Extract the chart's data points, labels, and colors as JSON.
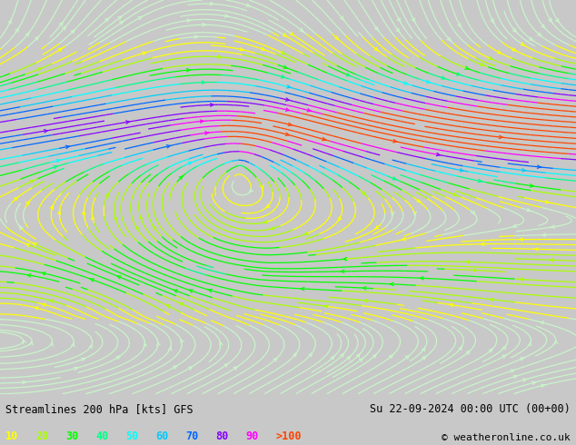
{
  "title_left": "Streamlines 200 hPa [kts] GFS",
  "title_right": "Su 22-09-2024 00:00 UTC (00+00)",
  "copyright": "© weatheronline.co.uk",
  "legend_values": [
    "10",
    "20",
    "30",
    "40",
    "50",
    "60",
    "70",
    "80",
    "90",
    ">100"
  ],
  "legend_colors": [
    "#ffff00",
    "#aaff00",
    "#00ff00",
    "#00ff88",
    "#00ffff",
    "#00ccff",
    "#0066ff",
    "#8800ff",
    "#ff00ff",
    "#ff4400"
  ],
  "ocean_color": "#c8f5c8",
  "land_color": "#d8d8d8",
  "border_color": "#888888",
  "bottom_bg": "#c8c8c8",
  "fig_width": 6.34,
  "fig_height": 4.9,
  "dpi": 100,
  "lon_min": 40,
  "lon_max": 148,
  "lat_min": -15,
  "lat_max": 62,
  "streamline_density": 2.5
}
